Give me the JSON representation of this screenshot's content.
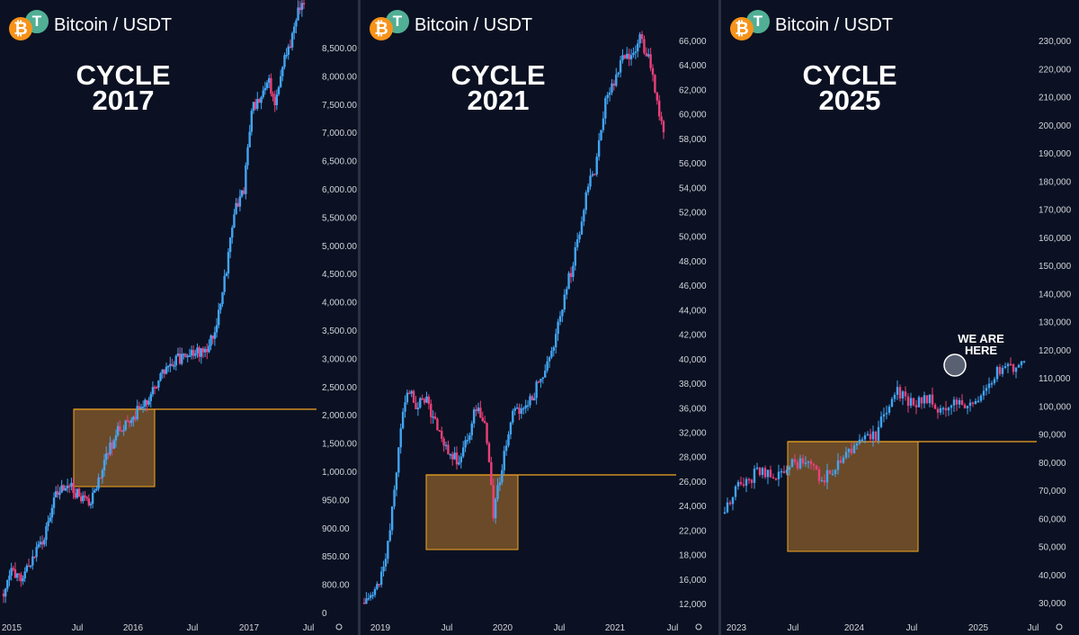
{
  "pair_label": "Bitcoin / USDT",
  "colors": {
    "background": "#0b1122",
    "up": "#42a5f5",
    "down": "#ec407a",
    "box_fill": "#b97a2e",
    "box_line": "#f5a623",
    "text": "#d1d4dc"
  },
  "panels": [
    {
      "title_line1": "CYCLE",
      "title_line2": "2017",
      "y_ticks": [
        "8,500.00",
        "8,000.00",
        "7,500.00",
        "7,000.00",
        "6,500.00",
        "6,000.00",
        "5,500.00",
        "5,000.00",
        "4,500.00",
        "4,000.00",
        "3,500.00",
        "3,000.00",
        "2,500.00",
        "2,000.00",
        "1,500.00",
        "1,000.00",
        "950.00",
        "900.00",
        "850.00",
        "800.00",
        "0"
      ],
      "x_ticks": [
        "2015",
        "Jul",
        "2016",
        "Jul",
        "2017",
        "Jul"
      ]
    },
    {
      "title_line1": "CYCLE",
      "title_line2": "2021",
      "y_ticks": [
        "66,000",
        "64,000",
        "62,000",
        "60,000",
        "58,000",
        "56,000",
        "54,000",
        "52,000",
        "50,000",
        "48,000",
        "46,000",
        "44,000",
        "42,000",
        "40,000",
        "38,000",
        "36,000",
        "32,000",
        "28,000",
        "26,000",
        "24,000",
        "22,000",
        "18,000",
        "16,000",
        "12,000"
      ],
      "x_ticks": [
        "2019",
        "Jul",
        "2020",
        "Jul",
        "2021",
        "Jul"
      ]
    },
    {
      "title_line1": "CYCLE",
      "title_line2": "2025",
      "y_ticks": [
        "230,000",
        "220,000",
        "210,000",
        "200,000",
        "190,000",
        "180,000",
        "170,000",
        "160,000",
        "150,000",
        "140,000",
        "130,000",
        "120,000",
        "110,000",
        "100,000",
        "90,000",
        "80,000",
        "70,000",
        "60,000",
        "50,000",
        "40,000",
        "30,000"
      ],
      "x_ticks": [
        "2023",
        "Jul",
        "2024",
        "Jul",
        "2025",
        "Jul"
      ],
      "annotation_line1": "WE ARE",
      "annotation_line2": "HERE"
    }
  ],
  "chart_data": [
    {
      "type": "candlestick",
      "title": "CYCLE 2017",
      "x_range": [
        "2015-01",
        "2017-08"
      ],
      "approx_close": [
        220,
        250,
        240,
        260,
        280,
        300,
        360,
        420,
        430,
        420,
        400,
        380,
        420,
        500,
        560,
        620,
        650,
        680,
        720,
        760,
        850,
        900,
        950,
        960,
        990,
        1000,
        1000,
        1100,
        1300,
        1800,
        2500,
        2700,
        4500,
        4800,
        5500,
        4700,
        6000,
        6800,
        8500,
        9200
      ],
      "breakout_level": 1000
    },
    {
      "type": "candlestick",
      "title": "CYCLE 2021",
      "x_range": [
        "2019-01",
        "2021-07"
      ],
      "approx_close": [
        3500,
        3700,
        4000,
        5000,
        7500,
        10500,
        9500,
        10000,
        9000,
        8200,
        7500,
        7200,
        8000,
        9500,
        8700,
        5500,
        7000,
        9000,
        9400,
        9500,
        10500,
        11500,
        13000,
        16000,
        19000,
        23000,
        29000,
        33000,
        45000,
        49000,
        58000,
        57000,
        63000,
        56000,
        45000,
        35000
      ],
      "breakout_level": 24500
    },
    {
      "type": "candlestick",
      "title": "CYCLE 2025",
      "x_range": [
        "2023-01",
        "2025-07"
      ],
      "approx_close": [
        17000,
        23000,
        24000,
        28000,
        28000,
        27000,
        30000,
        30500,
        29000,
        26000,
        26500,
        34000,
        38000,
        42000,
        43000,
        60000,
        71000,
        64000,
        63000,
        68000,
        58000,
        64000,
        60000,
        63000,
        70000,
        90000,
        97000,
        94000,
        106000
      ],
      "breakout_level": 82000,
      "annotation": "WE ARE HERE"
    }
  ]
}
